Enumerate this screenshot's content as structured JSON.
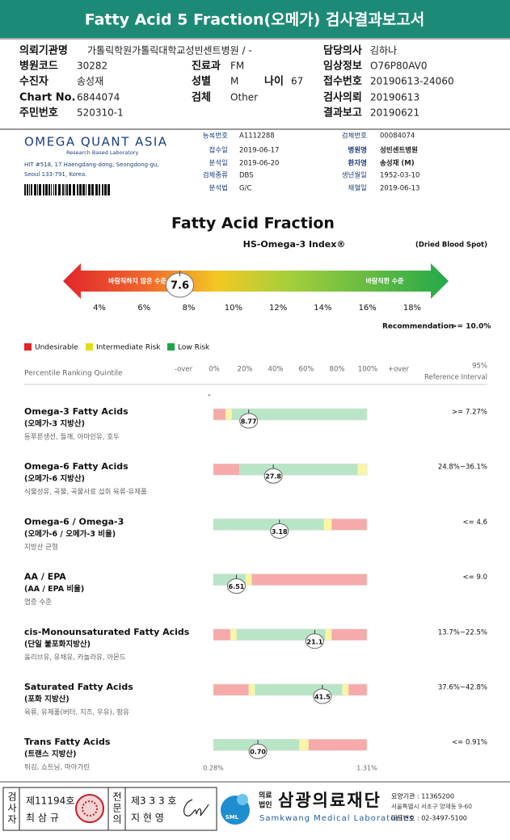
{
  "header": {
    "title": "Fatty Acid 5 Fraction(오메가) 검사결과보고서"
  },
  "info": {
    "institution": {
      "label": "의뢰기관명",
      "value": "가톨릭학원가톨릭대학교성빈센트병원 / -"
    },
    "doctor": {
      "label": "담당의사",
      "value": "김하나"
    },
    "hospital_code": {
      "label": "병원코드",
      "value": "30282"
    },
    "department": {
      "label": "진료과",
      "value": "FM"
    },
    "clinical": {
      "label": "임상정보",
      "value": "O76P80AV0"
    },
    "patient": {
      "label": "수진자",
      "value": "송성재"
    },
    "sex": {
      "label": "성별",
      "value": "M"
    },
    "age": {
      "label": "나이",
      "value": "67"
    },
    "receipt_no": {
      "label": "접수번호",
      "value": "20190613-24060"
    },
    "chart_no": {
      "label": "Chart No.",
      "value": "6844074"
    },
    "specimen": {
      "label": "검체",
      "value": "Other"
    },
    "requested": {
      "label": "검사의뢰",
      "value": "20190613"
    },
    "resident_no": {
      "label": "주민번호",
      "value": "520310-1"
    },
    "reported": {
      "label": "결과보고",
      "value": "20190621"
    }
  },
  "lab": {
    "logo": "OMEGA QUANT ASIA",
    "tagline": "Research Based Laboratory",
    "address": [
      "HIT #518, 17 Haengdang-dong, Seongdong-gu,",
      "Seoul 133-791, Korea."
    ],
    "fields": [
      {
        "label": "등록번호",
        "value": "A1112288"
      },
      {
        "label": "접수일",
        "value": "2019-06-17"
      },
      {
        "label": "분석일",
        "value": "2019-06-20"
      },
      {
        "label": "검체종류",
        "value": "DBS"
      },
      {
        "label": "분석법",
        "value": "G/C"
      }
    ],
    "fields2": [
      {
        "label": "검체번호",
        "value": "00084074"
      },
      {
        "label": "병원명",
        "value": "성빈센트병원"
      },
      {
        "label": "환자명",
        "value": "송성재 (M)"
      },
      {
        "label": "생년월일",
        "value": "1952-03-10"
      },
      {
        "label": "채혈일",
        "value": "2019-06-13"
      }
    ]
  },
  "report": {
    "title": "Fatty Acid Fraction",
    "index_title": "HS-Omega-3 Index®",
    "specimen_note": "(Dried Blood Spot)",
    "low_label": "바람직하지 않은 수준",
    "high_label": "바람직한 수준",
    "index_value": 7.6,
    "scale": [
      {
        "value": 4,
        "label": "4%"
      },
      {
        "value": 6,
        "label": "6%"
      },
      {
        "value": 8,
        "label": "8%"
      },
      {
        "value": 10,
        "label": "10%"
      },
      {
        "value": 12,
        "label": "12%"
      },
      {
        "value": 14,
        "label": "14%"
      },
      {
        "value": 16,
        "label": "16%"
      },
      {
        "value": 18,
        "label": "18%"
      }
    ],
    "recommendation": {
      "label": "Recommendation",
      "value": ">= 10.0%"
    }
  },
  "legend": [
    {
      "name": "Undesirable",
      "color": "#e52424"
    },
    {
      "name": "Intermediate Risk",
      "color": "#e3dc14"
    },
    {
      "name": "Low Risk",
      "color": "#1fa64d"
    }
  ],
  "ranking": {
    "title": "Percentile Ranking Quintile",
    "scale_labels": [
      "-over",
      "0%",
      "20%",
      "40%",
      "60%",
      "80%",
      "100%",
      "+over"
    ],
    "reference_top": "95%",
    "reference_title": "Reference Interval",
    "dash": "-",
    "items": [
      {
        "name": "Omega-3 Fatty Acids",
        "korean": "(오메가-3 지방산)",
        "foods": "등푸른생선, 들깨, 아마인유, 호두",
        "value": "8.77",
        "percentile": 23,
        "reference": ">= 7.27%",
        "segments": [
          {
            "from": 0,
            "to": 8,
            "color": "#f7aaaa"
          },
          {
            "from": 8,
            "to": 12,
            "color": "#fbf6a6"
          },
          {
            "from": 12,
            "to": 100,
            "color": "#b9e5c7"
          }
        ]
      },
      {
        "name": "Omega-6 Fatty Acids",
        "korean": "(오메가-6 지방산)",
        "foods": "식물성유, 곡물, 곡물사료 섭취 육류·유제품",
        "value": "27.8",
        "percentile": 39,
        "reference": "24.8%~36.1%",
        "segments": [
          {
            "from": 0,
            "to": 17,
            "color": "#f7aaaa"
          },
          {
            "from": 17,
            "to": 94,
            "color": "#b9e5c7"
          },
          {
            "from": 94,
            "to": 100,
            "color": "#fbf6a6"
          }
        ]
      },
      {
        "name": "Omega-6 / Omega-3",
        "korean": "(오메가-6 / 오메가-3 비율)",
        "foods": "지방산 균형",
        "value": "3.18",
        "percentile": 43,
        "reference": "<= 4.6",
        "segments": [
          {
            "from": 0,
            "to": 72,
            "color": "#b9e5c7"
          },
          {
            "from": 72,
            "to": 77,
            "color": "#fbf6a6"
          },
          {
            "from": 77,
            "to": 100,
            "color": "#f7aaaa"
          }
        ]
      },
      {
        "name": "AA / EPA",
        "korean": "(AA / EPA 비율)",
        "foods": "염증 수준",
        "value": "6.51",
        "percentile": 15,
        "reference": "<= 9.0",
        "segments": [
          {
            "from": 0,
            "to": 21,
            "color": "#b9e5c7"
          },
          {
            "from": 21,
            "to": 25,
            "color": "#fbf6a6"
          },
          {
            "from": 25,
            "to": 100,
            "color": "#f7aaaa"
          }
        ]
      },
      {
        "name": "cis-Monounsaturated Fatty Acids",
        "korean": "(단일 불포화지방산)",
        "foods": "올리브유, 유채유, 카놀라유, 아몬드",
        "value": "21.1",
        "percentile": 66,
        "reference": "13.7%~22.5%",
        "segments": [
          {
            "from": 0,
            "to": 11,
            "color": "#f7aaaa"
          },
          {
            "from": 11,
            "to": 15,
            "color": "#fbf6a6"
          },
          {
            "from": 15,
            "to": 73,
            "color": "#b9e5c7"
          },
          {
            "from": 73,
            "to": 77,
            "color": "#fbf6a6"
          },
          {
            "from": 77,
            "to": 100,
            "color": "#f7aaaa"
          }
        ]
      },
      {
        "name": "Saturated Fatty Acids",
        "korean": "(포화 지방산)",
        "foods": "육류, 유제품(버터, 치즈, 우유), 팜유",
        "value": "41.5",
        "percentile": 71,
        "reference": "37.6%~42.8%",
        "segments": [
          {
            "from": 0,
            "to": 23,
            "color": "#f7aaaa"
          },
          {
            "from": 23,
            "to": 27,
            "color": "#fbf6a6"
          },
          {
            "from": 27,
            "to": 84,
            "color": "#b9e5c7"
          },
          {
            "from": 84,
            "to": 88,
            "color": "#fbf6a6"
          },
          {
            "from": 88,
            "to": 100,
            "color": "#f7aaaa"
          }
        ]
      },
      {
        "name": "Trans Fatty Acids",
        "korean": "(트랜스 지방산)",
        "foods": "튀김, 쇼트닝, 마아가린",
        "value": "0.70",
        "percentile": 29,
        "reference": "<= 0.91%",
        "range": [
          "0.28%",
          "1.31%"
        ],
        "segments": [
          {
            "from": 0,
            "to": 56,
            "color": "#b9e5c7"
          },
          {
            "from": 56,
            "to": 62,
            "color": "#fbf6a6"
          },
          {
            "from": 62,
            "to": 100,
            "color": "#f7aaaa"
          }
        ]
      }
    ]
  },
  "footer": {
    "tester_title": "검사자",
    "tester_no": "제11194호",
    "tester_name": "최 삼 규",
    "md_title": "전문의",
    "md_no": "제3 3 3 호",
    "md_name": "지 현 영",
    "logo": "SML",
    "org_type": [
      "의료",
      "법인"
    ],
    "org_name": "삼광의료재단",
    "org_en": "Samkwang Medical Laboratories",
    "code": "요양기관 : 11365200",
    "address": "서울특별시 서초구 양재동 9-60",
    "phone": "대표번호 : 02-3497-5100"
  }
}
